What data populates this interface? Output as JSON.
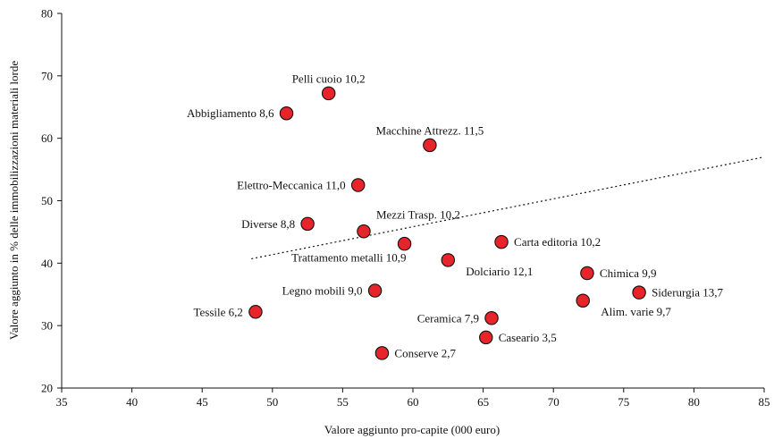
{
  "chart_data": {
    "type": "scatter",
    "title": "",
    "xlabel": "Valore aggiunto pro-capite (000 euro)",
    "ylabel": "Valore aggiunto in % delle immobilizzazioni materiali lorde",
    "xlim": [
      35,
      85
    ],
    "ylim": [
      20,
      80
    ],
    "xticks": [
      35,
      40,
      45,
      50,
      55,
      60,
      65,
      70,
      75,
      80,
      85
    ],
    "yticks": [
      20,
      30,
      40,
      50,
      60,
      70,
      80
    ],
    "grid": false,
    "legend": "none",
    "marker_color": "#e8242b",
    "marker_edge": "#111111",
    "points": [
      {
        "label": "Pelli cuoio 10,2",
        "x": 54.0,
        "y": 67.2,
        "label_side": "above"
      },
      {
        "label": "Abbigliamento 8,6",
        "x": 51.0,
        "y": 64.0,
        "label_side": "left"
      },
      {
        "label": "Macchine Attrezz. 11,5",
        "x": 61.2,
        "y": 58.9,
        "label_side": "above"
      },
      {
        "label": "Elettro-Meccanica 11,0",
        "x": 56.1,
        "y": 52.5,
        "label_side": "left"
      },
      {
        "label": "Diverse 8,8",
        "x": 52.5,
        "y": 46.3,
        "label_side": "left"
      },
      {
        "label": "Mezzi Trasp. 10,2",
        "x": 56.5,
        "y": 45.1,
        "label_side": "above-right"
      },
      {
        "label": "Trattamento metalli 10,9",
        "x": 59.4,
        "y": 43.1,
        "label_side": "below-left"
      },
      {
        "label": "Carta editoria 10,2",
        "x": 66.3,
        "y": 43.4,
        "label_side": "right"
      },
      {
        "label": "Dolciario 12,1",
        "x": 62.5,
        "y": 40.5,
        "label_side": "below-right"
      },
      {
        "label": "Chimica 9,9",
        "x": 72.4,
        "y": 38.4,
        "label_side": "right"
      },
      {
        "label": "Siderurgia 13,7",
        "x": 76.1,
        "y": 35.3,
        "label_side": "right"
      },
      {
        "label": "Legno mobili 9,0",
        "x": 57.3,
        "y": 35.6,
        "label_side": "left"
      },
      {
        "label": "Alim. varie 9,7",
        "x": 72.1,
        "y": 34.0,
        "label_side": "below-right"
      },
      {
        "label": "Tessile 6,2",
        "x": 48.8,
        "y": 32.2,
        "label_side": "left"
      },
      {
        "label": "Ceramica 7,9",
        "x": 65.6,
        "y": 31.2,
        "label_side": "left"
      },
      {
        "label": "Caseario 3,5",
        "x": 65.2,
        "y": 28.1,
        "label_side": "right"
      },
      {
        "label": "Conserve 2,7",
        "x": 57.8,
        "y": 25.6,
        "label_side": "right"
      }
    ],
    "trendline": {
      "style": "dotted",
      "x": [
        48.5,
        85
      ],
      "y": [
        40.7,
        57.0
      ]
    }
  }
}
